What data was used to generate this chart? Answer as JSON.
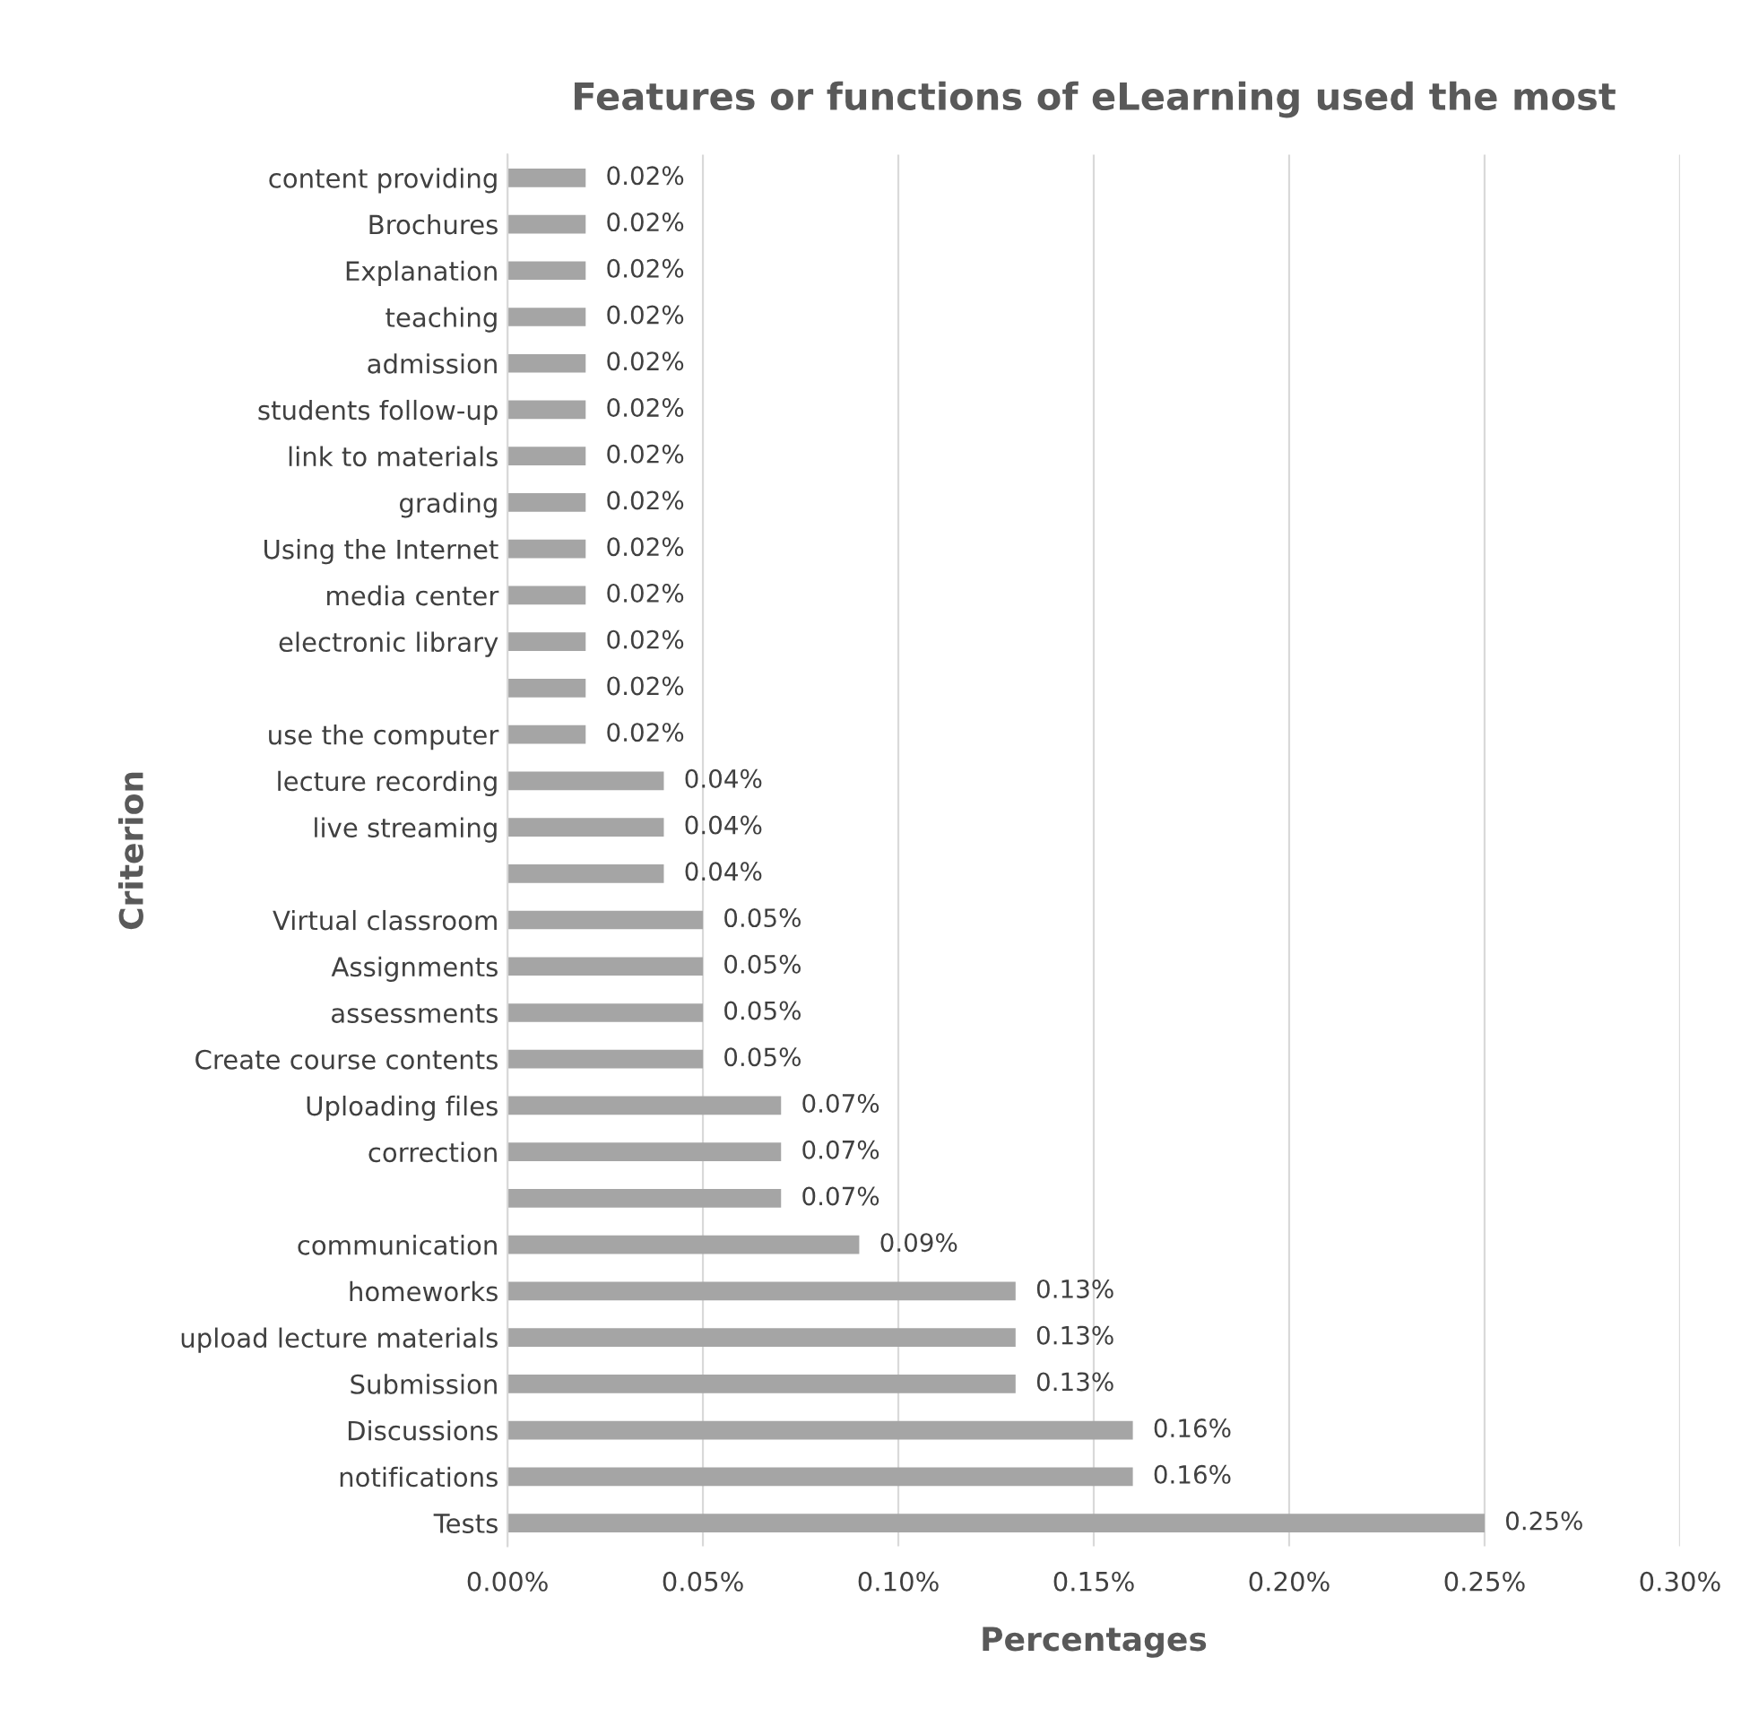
{
  "chart_data": {
    "type": "bar",
    "orientation": "horizontal",
    "title": "Features or functions of eLearning used the most",
    "xlabel": "Percentages",
    "ylabel": "Criterion",
    "categories": [
      "content providing",
      "Brochures",
      "Explanation",
      "teaching",
      "admission",
      "students follow-up",
      "link to materials",
      "grading",
      "Using the Internet",
      "media center",
      "electronic library",
      null,
      "use the computer",
      "lecture recording",
      "live streaming",
      null,
      "Virtual classroom",
      "Assignments",
      "assessments",
      "Create course contents",
      "Uploading files",
      "correction",
      null,
      "communication",
      "homeworks",
      "upload lecture materials",
      "Submission",
      "Discussions",
      "notifications",
      "Tests"
    ],
    "values": [
      0.02,
      0.02,
      0.02,
      0.02,
      0.02,
      0.02,
      0.02,
      0.02,
      0.02,
      0.02,
      0.02,
      0.02,
      0.02,
      0.04,
      0.04,
      0.04,
      0.05,
      0.05,
      0.05,
      0.05,
      0.07,
      0.07,
      0.07,
      0.09,
      0.13,
      0.13,
      0.13,
      0.16,
      0.16,
      0.25
    ],
    "value_labels": [
      "0.02%",
      "0.02%",
      "0.02%",
      "0.02%",
      "0.02%",
      "0.02%",
      "0.02%",
      "0.02%",
      "0.02%",
      "0.02%",
      "0.02%",
      "0.02%",
      "0.02%",
      "0.04%",
      "0.04%",
      "0.04%",
      "0.05%",
      "0.05%",
      "0.05%",
      "0.05%",
      "0.07%",
      "0.07%",
      "0.07%",
      "0.09%",
      "0.13%",
      "0.13%",
      "0.13%",
      "0.16%",
      "0.16%",
      "0.25%"
    ],
    "color": "#a5a5a5",
    "xlim": [
      0,
      0.3
    ],
    "xticks": [
      {
        "value": 0,
        "label": "0.00%"
      },
      {
        "value": 0.05,
        "label": "0.05%"
      },
      {
        "value": 0.1,
        "label": "0.10%"
      },
      {
        "value": 0.15,
        "label": "0.15%"
      },
      {
        "value": 0.2,
        "label": "0.20%"
      },
      {
        "value": 0.25,
        "label": "0.25%"
      },
      {
        "value": 0.3,
        "label": "0.30%"
      }
    ],
    "grid": "x"
  }
}
